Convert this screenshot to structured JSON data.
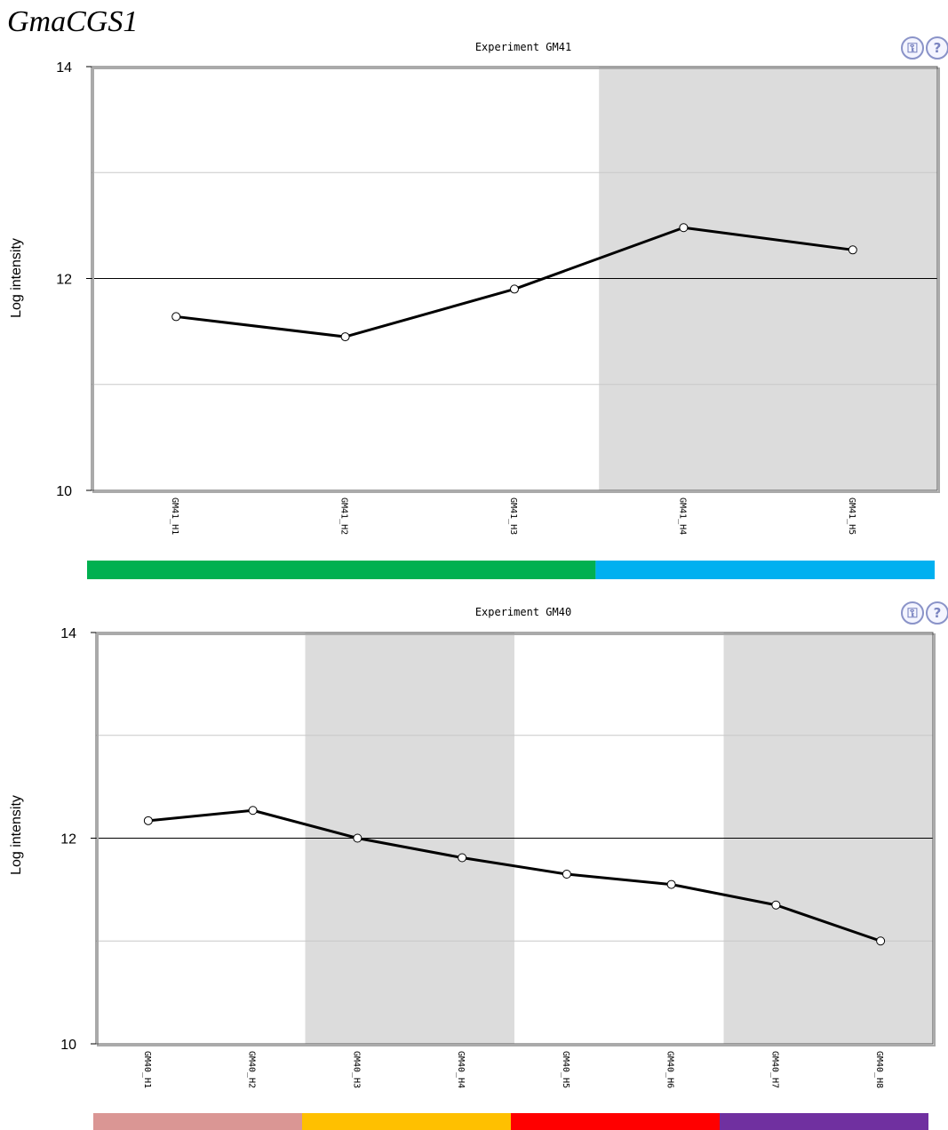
{
  "page": {
    "title": "GmaCGS1"
  },
  "icons": {
    "legend": "legend-key-icon",
    "help": "help-question-icon",
    "legend_glyph": "⚿",
    "help_glyph": "?",
    "color": "#7a84c0"
  },
  "style": {
    "line_color": "#000000",
    "shade_color": "#dcdcdc",
    "grid_color": "#c8c8c8",
    "frame_color": "#555555"
  },
  "chart_data": [
    {
      "type": "line",
      "title": "Experiment GM41",
      "ylabel": "Log intensity",
      "xlabel": "",
      "ylim": [
        10,
        14
      ],
      "yticks": [
        10,
        12,
        14
      ],
      "grid": true,
      "categories": [
        "GM41_H1",
        "GM41_H2",
        "GM41_H3",
        "GM41_H4",
        "GM41_H5"
      ],
      "series": [
        {
          "values": [
            11.64,
            11.45,
            11.9,
            12.48,
            12.27
          ]
        }
      ],
      "shaded_ranges": [
        [
          3,
          4
        ]
      ],
      "groups": [
        {
          "from": 0,
          "to": 2,
          "color": "#00b050"
        },
        {
          "from": 3,
          "to": 4,
          "color": "#00b0f0"
        }
      ]
    },
    {
      "type": "line",
      "title": "Experiment GM40",
      "ylabel": "Log intensity",
      "xlabel": "",
      "ylim": [
        10,
        14
      ],
      "yticks": [
        10,
        12,
        14
      ],
      "grid": true,
      "categories": [
        "GM40_H1",
        "GM40_H2",
        "GM40_H3",
        "GM40_H4",
        "GM40_H5",
        "GM40_H6",
        "GM40_H7",
        "GM40_H8"
      ],
      "series": [
        {
          "values": [
            12.17,
            12.27,
            12.0,
            11.81,
            11.65,
            11.55,
            11.35,
            11.0
          ]
        }
      ],
      "shaded_ranges": [
        [
          2,
          3
        ],
        [
          6,
          7
        ]
      ],
      "groups": [
        {
          "from": 0,
          "to": 1,
          "color": "#da9694"
        },
        {
          "from": 2,
          "to": 3,
          "color": "#ffc000"
        },
        {
          "from": 4,
          "to": 5,
          "color": "#ff0000"
        },
        {
          "from": 6,
          "to": 7,
          "color": "#7030a0"
        }
      ]
    }
  ]
}
